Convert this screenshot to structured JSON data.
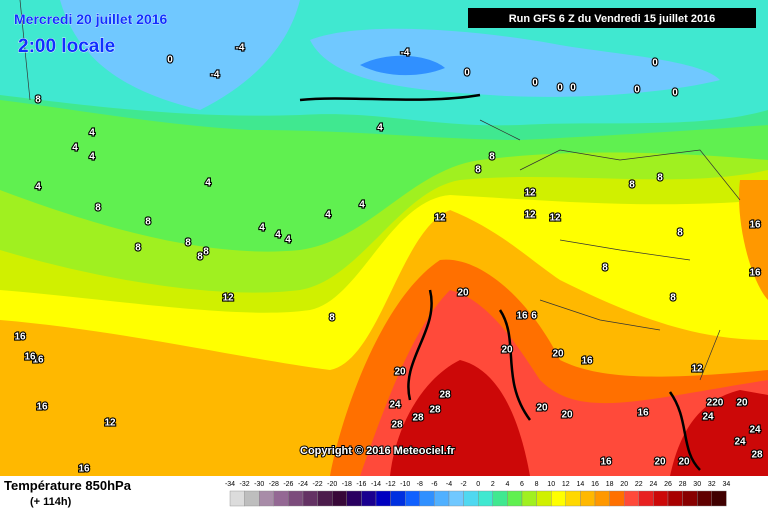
{
  "header": {
    "date": "Mercredi 20 juillet 2016",
    "time": "2:00 locale",
    "run": "Run GFS 6 Z du Vendredi 15 juillet 2016"
  },
  "copyright": "Copyright © 2016 Meteociel.fr",
  "footer": {
    "title": "Température 850hPa",
    "lead": "(+ 114h)"
  },
  "scale": {
    "ticks": [
      -34,
      -32,
      -30,
      -28,
      -26,
      -24,
      -22,
      -20,
      -18,
      -16,
      -14,
      -12,
      -10,
      -8,
      -6,
      -4,
      -2,
      0,
      2,
      4,
      6,
      8,
      10,
      12,
      14,
      16,
      18,
      20,
      22,
      24,
      26,
      28,
      30,
      32,
      34
    ],
    "colors": [
      "#dcdcdc",
      "#bebebe",
      "#a88ca8",
      "#946894",
      "#7c4c7c",
      "#643264",
      "#4c1c4c",
      "#380838",
      "#2a0060",
      "#1a0090",
      "#0000c0",
      "#0030e0",
      "#1060ff",
      "#3090ff",
      "#50b0ff",
      "#70c8ff",
      "#50d8f0",
      "#40e8d0",
      "#40e890",
      "#60f050",
      "#a0f020",
      "#d0f000",
      "#ffff00",
      "#ffd800",
      "#ffb800",
      "#ff9800",
      "#ff7000",
      "#ff4a3a",
      "#e82020",
      "#cc0808",
      "#a80000",
      "#880000",
      "#600000",
      "#400000"
    ]
  },
  "contour_labels": [
    "-4",
    "-4",
    "0",
    "-4",
    "0",
    "0",
    "0",
    "0",
    "0",
    "0",
    "0",
    "8",
    "4",
    "4",
    "4",
    "4",
    "4",
    "4",
    "8",
    "8",
    "8",
    "8",
    "8",
    "8",
    "8",
    "8",
    "4",
    "4",
    "4",
    "4",
    "4",
    "12",
    "8",
    "12",
    "12",
    "12",
    "12",
    "8",
    "8",
    "8",
    "8",
    "8",
    "16",
    "16",
    "16",
    "16",
    "16",
    "16",
    "12",
    "16",
    "20",
    "16",
    "6",
    "20",
    "20",
    "16",
    "12",
    "20",
    "24",
    "28",
    "28",
    "28",
    "28",
    "20",
    "20",
    "16",
    "220",
    "20",
    "24",
    "24",
    "28",
    "24",
    "20",
    "20",
    "16"
  ]
}
